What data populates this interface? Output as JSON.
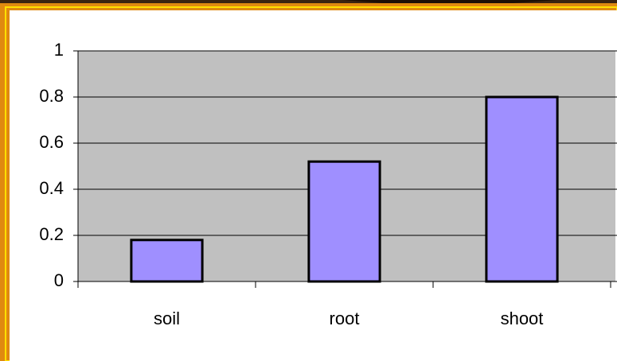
{
  "chart_data": {
    "type": "bar",
    "categories": [
      "soil",
      "root",
      "shoot"
    ],
    "values": [
      0.18,
      0.52,
      0.8
    ],
    "color": "#9f8fff",
    "ylim": [
      0,
      1
    ],
    "yticks": [
      0,
      0.2,
      0.4,
      0.6,
      0.8,
      1
    ],
    "grid": true
  }
}
